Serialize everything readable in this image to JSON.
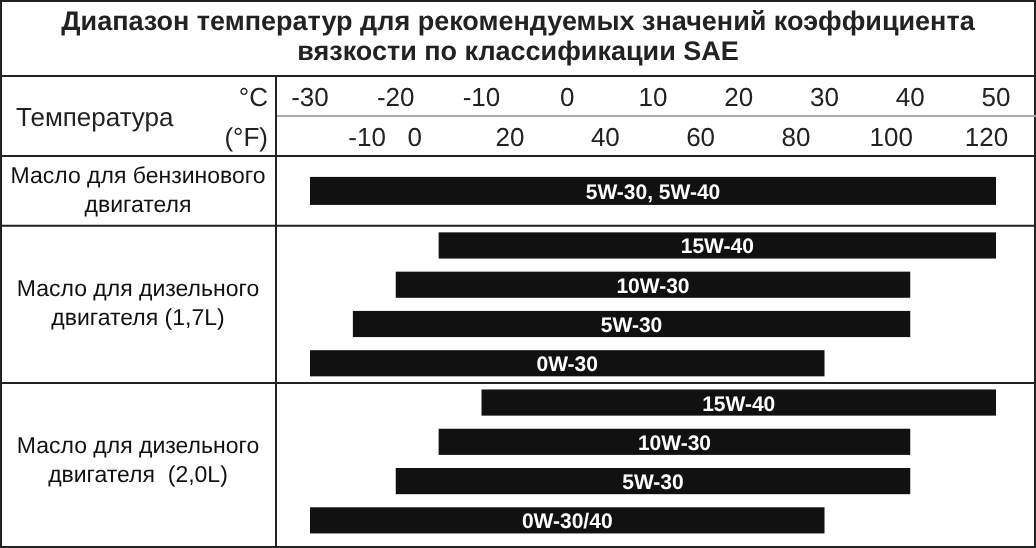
{
  "chart_data": {
    "type": "bar",
    "orientation": "horizontal",
    "title": "Диапазон температур для рекомендуемых значений коэффициента вязкости по классификации SAE",
    "ylabel": "Температура",
    "xlabel": "°C",
    "x2label": "(°F)",
    "categories": [
      "5W-30, 5W-40",
      "15W-40",
      "10W-30",
      "5W-30",
      "0W-30",
      "15W-40",
      "10W-30",
      "5W-30",
      "0W-30/40"
    ],
    "series": [
      {
        "name": "Масло для бензинового двигателя",
        "color": "#111111",
        "base": [
          -30,
          null,
          null,
          null,
          null,
          null,
          null,
          null,
          null
        ],
        "values": [
          80,
          null,
          null,
          null,
          null,
          null,
          null,
          null,
          null
        ]
      },
      {
        "name": "Масло для дизельного двигателя (1,7L)",
        "color": "#111111",
        "base": [
          null,
          -15,
          -20,
          -25,
          -30,
          null,
          null,
          null,
          null
        ],
        "values": [
          null,
          65,
          60,
          65,
          60,
          null,
          null,
          null,
          null
        ]
      },
      {
        "name": "Масло для дизельного двигателя  (2,0L)",
        "color": "#111111",
        "base": [
          null,
          null,
          null,
          null,
          null,
          -10,
          -15,
          -20,
          -30
        ],
        "values": [
          null,
          null,
          null,
          null,
          null,
          60,
          55,
          60,
          60
        ]
      }
    ],
    "xlim": [
      -30,
      50
    ],
    "xticks": [
      -30,
      -20,
      -10,
      0,
      10,
      20,
      30,
      40,
      50
    ],
    "x2lim": [
      -22,
      122
    ],
    "x2ticks": [
      -10,
      0,
      20,
      40,
      60,
      80,
      100,
      120
    ],
    "grid": false
  }
}
